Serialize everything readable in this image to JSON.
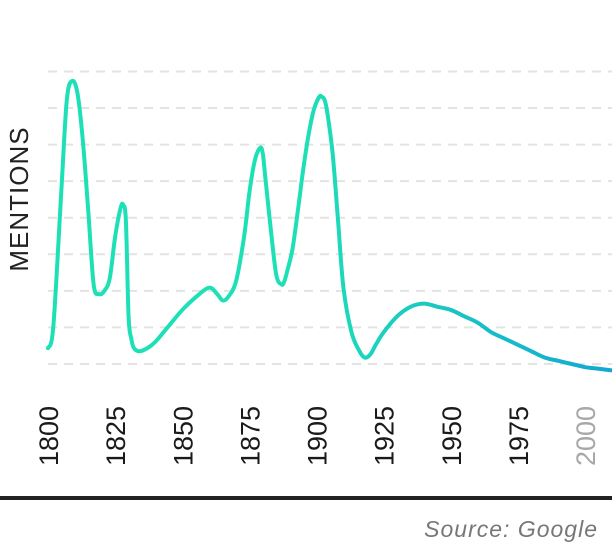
{
  "chart_data": {
    "type": "line",
    "title": "",
    "xlabel": "",
    "ylabel": "MENTIONS",
    "xlim": [
      1800,
      2010
    ],
    "ylim": [
      0,
      100
    ],
    "x_ticks": [
      {
        "value": 1800,
        "label": "1800",
        "faded": false
      },
      {
        "value": 1825,
        "label": "1825",
        "faded": false
      },
      {
        "value": 1850,
        "label": "1850",
        "faded": false
      },
      {
        "value": 1875,
        "label": "1875",
        "faded": false
      },
      {
        "value": 1900,
        "label": "1900",
        "faded": false
      },
      {
        "value": 1925,
        "label": "1925",
        "faded": false
      },
      {
        "value": 1950,
        "label": "1950",
        "faded": false
      },
      {
        "value": 1975,
        "label": "1975",
        "faded": false
      },
      {
        "value": 2000,
        "label": "2000",
        "faded": true
      }
    ],
    "grid": true,
    "y_gridlines": [
      0,
      11.5,
      23,
      34.5,
      46,
      57.5,
      69,
      80.5,
      92
    ],
    "legend": "none",
    "gradient_colors": [
      "#1ee0b6",
      "#12a8d2"
    ],
    "series": [
      {
        "x": [
          1800,
          1802,
          1805,
          1807,
          1809,
          1811,
          1813,
          1815,
          1817,
          1819,
          1821,
          1823,
          1825,
          1827,
          1828,
          1829,
          1830,
          1831,
          1832,
          1834,
          1837,
          1840,
          1845,
          1850,
          1855,
          1860,
          1863,
          1865,
          1867,
          1870,
          1873,
          1875,
          1877,
          1879,
          1880,
          1881,
          1883,
          1885,
          1887,
          1888,
          1889,
          1891,
          1893,
          1895,
          1897,
          1899,
          1901,
          1902,
          1903,
          1904,
          1906,
          1908,
          1910,
          1913,
          1916,
          1918,
          1920,
          1922,
          1925,
          1930,
          1935,
          1940,
          1945,
          1950,
          1955,
          1960,
          1965,
          1970,
          1975,
          1980,
          1985,
          1990,
          1995,
          2000,
          2005,
          2010
        ],
        "y": [
          5,
          12,
          55,
          83,
          89,
          85,
          70,
          48,
          25,
          22,
          23,
          27,
          40,
          49,
          50,
          45,
          15,
          8,
          5,
          4,
          5,
          7,
          12,
          17,
          21,
          24,
          22,
          20,
          21,
          26,
          40,
          54,
          64,
          68,
          66,
          58,
          42,
          28,
          25,
          26,
          29,
          36,
          48,
          61,
          72,
          80,
          84,
          84,
          83,
          79,
          66,
          45,
          24,
          10,
          4,
          2,
          3,
          6,
          10,
          15,
          18,
          19,
          18,
          17,
          15,
          13,
          10,
          8,
          6,
          4,
          2,
          1,
          0,
          -1,
          -1.5,
          -2
        ]
      }
    ],
    "source": "Source: Google"
  }
}
